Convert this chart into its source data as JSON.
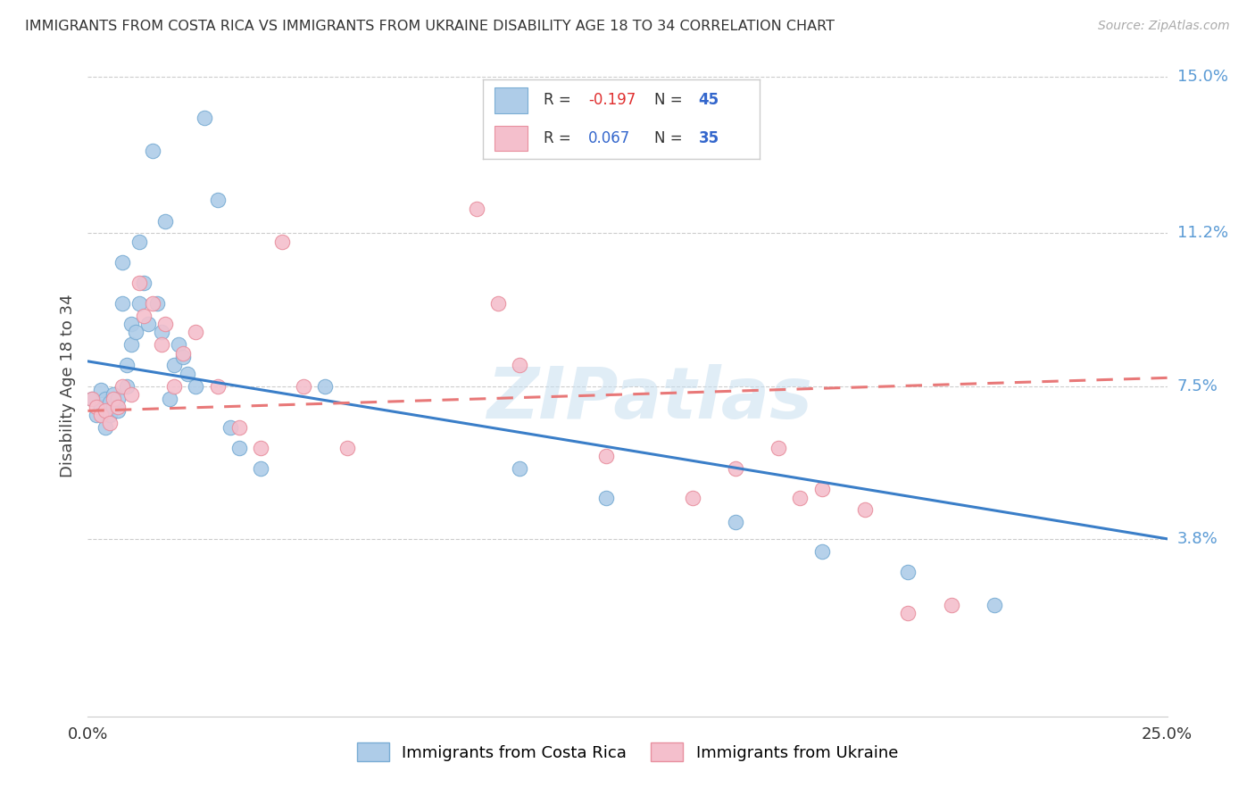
{
  "title": "IMMIGRANTS FROM COSTA RICA VS IMMIGRANTS FROM UKRAINE DISABILITY AGE 18 TO 34 CORRELATION CHART",
  "source": "Source: ZipAtlas.com",
  "ylabel": "Disability Age 18 to 34",
  "xlim": [
    0.0,
    0.25
  ],
  "ylim": [
    -0.005,
    0.155
  ],
  "ytick_positions": [
    0.038,
    0.075,
    0.112,
    0.15
  ],
  "ytick_labels": [
    "3.8%",
    "7.5%",
    "11.2%",
    "15.0%"
  ],
  "watermark": "ZIPatlas",
  "series1_color": "#aecce8",
  "series1_edge": "#7aadd4",
  "series2_color": "#f4bfcc",
  "series2_edge": "#e8909f",
  "trend1_color": "#3a7ec8",
  "trend2_color": "#e87878",
  "R1": -0.197,
  "N1": 45,
  "R2": 0.067,
  "N2": 35,
  "legend1_label": "Immigrants from Costa Rica",
  "legend2_label": "Immigrants from Ukraine",
  "series1_x": [
    0.001,
    0.002,
    0.003,
    0.003,
    0.004,
    0.004,
    0.005,
    0.005,
    0.006,
    0.006,
    0.007,
    0.007,
    0.008,
    0.008,
    0.009,
    0.009,
    0.01,
    0.01,
    0.011,
    0.012,
    0.012,
    0.013,
    0.014,
    0.015,
    0.016,
    0.017,
    0.018,
    0.019,
    0.02,
    0.021,
    0.022,
    0.023,
    0.025,
    0.027,
    0.03,
    0.033,
    0.035,
    0.04,
    0.055,
    0.1,
    0.12,
    0.15,
    0.17,
    0.19,
    0.21
  ],
  "series1_y": [
    0.072,
    0.068,
    0.074,
    0.07,
    0.072,
    0.065,
    0.071,
    0.068,
    0.07,
    0.073,
    0.069,
    0.072,
    0.105,
    0.095,
    0.08,
    0.075,
    0.085,
    0.09,
    0.088,
    0.11,
    0.095,
    0.1,
    0.09,
    0.132,
    0.095,
    0.088,
    0.115,
    0.072,
    0.08,
    0.085,
    0.082,
    0.078,
    0.075,
    0.14,
    0.12,
    0.065,
    0.06,
    0.055,
    0.075,
    0.055,
    0.048,
    0.042,
    0.035,
    0.03,
    0.022
  ],
  "series2_x": [
    0.001,
    0.002,
    0.003,
    0.004,
    0.005,
    0.006,
    0.007,
    0.008,
    0.01,
    0.012,
    0.013,
    0.015,
    0.017,
    0.018,
    0.02,
    0.022,
    0.025,
    0.03,
    0.035,
    0.04,
    0.045,
    0.05,
    0.06,
    0.09,
    0.095,
    0.1,
    0.12,
    0.14,
    0.15,
    0.16,
    0.165,
    0.17,
    0.18,
    0.19,
    0.2
  ],
  "series2_y": [
    0.072,
    0.07,
    0.068,
    0.069,
    0.066,
    0.072,
    0.07,
    0.075,
    0.073,
    0.1,
    0.092,
    0.095,
    0.085,
    0.09,
    0.075,
    0.083,
    0.088,
    0.075,
    0.065,
    0.06,
    0.11,
    0.075,
    0.06,
    0.118,
    0.095,
    0.08,
    0.058,
    0.048,
    0.055,
    0.06,
    0.048,
    0.05,
    0.045,
    0.02,
    0.022
  ],
  "trend1_x0": 0.0,
  "trend1_x1": 0.25,
  "trend1_y0": 0.081,
  "trend1_y1": 0.038,
  "trend2_x0": 0.0,
  "trend2_x1": 0.25,
  "trend2_y0": 0.069,
  "trend2_y1": 0.077
}
